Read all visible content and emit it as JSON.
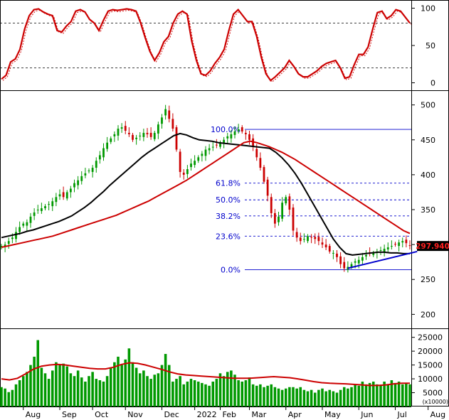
{
  "chart_data": [
    {
      "panel": "stochastic",
      "type": "line",
      "ylim": [
        -10,
        110
      ],
      "yticks": [
        0,
        50,
        100
      ],
      "reference_lines": [
        20,
        80
      ],
      "colors": {
        "k": "#cc0000",
        "d": "#cc0000",
        "ref": "#000000"
      },
      "series": [
        {
          "values": [
            5,
            10,
            28,
            32,
            45,
            72,
            90,
            98,
            99,
            95,
            92,
            90,
            70,
            68,
            76,
            82,
            96,
            98,
            95,
            85,
            80,
            70,
            84,
            96,
            98,
            97,
            98,
            99,
            98,
            96,
            80,
            60,
            42,
            30,
            40,
            55,
            62,
            80,
            92,
            96,
            92,
            56,
            30,
            12,
            10,
            16,
            26,
            34,
            45,
            70,
            92,
            98,
            90,
            82,
            82,
            62,
            34,
            12,
            3,
            8,
            14,
            20,
            30,
            22,
            12,
            8,
            8,
            12,
            16,
            22,
            26,
            28,
            30,
            20,
            6,
            8,
            24,
            38,
            38,
            48,
            72,
            94,
            96,
            86,
            90,
            98,
            96,
            88,
            80
          ]
        }
      ]
    },
    {
      "panel": "price",
      "type": "line",
      "ylim": [
        180,
        520
      ],
      "yticks": [
        200,
        250,
        300,
        350,
        400,
        450,
        500
      ],
      "last_price_label": "297.940",
      "colors": {
        "up": "#009900",
        "down": "#cc0000",
        "ma_short": "#000000",
        "ma_long": "#cc0000",
        "fib": "#0000cc",
        "trend": "#0000cc"
      },
      "x_labels": [
        "Aug",
        "Sep",
        "Oct",
        "Nov",
        "Dec",
        "2022",
        "Feb",
        "Mar",
        "Apr",
        "May",
        "Jun",
        "Jul",
        "Aug"
      ],
      "x_label_index": [
        6,
        16,
        25,
        34,
        44,
        53,
        60,
        68,
        78,
        88,
        98,
        108,
        117
      ],
      "close": [
        298,
        300,
        305,
        310,
        318,
        325,
        330,
        332,
        340,
        346,
        350,
        352,
        355,
        358,
        362,
        368,
        372,
        368,
        375,
        380,
        388,
        392,
        398,
        402,
        406,
        410,
        420,
        428,
        438,
        446,
        452,
        458,
        466,
        468,
        463,
        458,
        450,
        453,
        456,
        460,
        458,
        454,
        460,
        472,
        482,
        494,
        480,
        466,
        436,
        404,
        400,
        408,
        416,
        420,
        425,
        430,
        436,
        438,
        440,
        442,
        446,
        450,
        455,
        458,
        462,
        465,
        462,
        458,
        450,
        440,
        425,
        410,
        390,
        370,
        345,
        330,
        340,
        360,
        368,
        350,
        320,
        310,
        305,
        308,
        312,
        310,
        308,
        305,
        300,
        296,
        290,
        288,
        282,
        272,
        266,
        268,
        272,
        276,
        278,
        282,
        285,
        287,
        288,
        290,
        292,
        294,
        296,
        298,
        300,
        303,
        305,
        302,
        298
      ],
      "series": [
        {
          "name": "ma_short",
          "start_index": 0,
          "values": [
            310,
            312,
            314,
            316,
            319,
            321,
            324,
            327,
            330,
            333,
            337,
            341,
            347,
            353,
            360,
            368,
            376,
            385,
            393,
            401,
            409,
            417,
            425,
            432,
            438,
            444,
            450,
            456,
            459,
            457,
            453,
            450,
            449,
            448,
            446,
            445,
            444,
            443,
            442,
            441,
            440,
            439,
            438,
            432,
            424,
            414,
            402,
            388,
            372,
            356,
            340,
            324,
            308,
            296,
            287,
            285,
            286,
            287,
            288,
            289,
            289,
            288,
            288,
            287,
            287
          ]
        },
        {
          "name": "ma_long",
          "start_index": 0,
          "values": [
            296,
            298,
            300,
            302,
            304,
            306,
            308,
            310,
            312,
            315,
            318,
            321,
            324,
            327,
            330,
            333,
            336,
            339,
            342,
            346,
            350,
            354,
            358,
            362,
            367,
            372,
            377,
            382,
            387,
            392,
            398,
            404,
            410,
            416,
            422,
            428,
            434,
            440,
            446,
            448,
            446,
            443,
            440,
            436,
            432,
            427,
            422,
            416,
            410,
            404,
            398,
            392,
            386,
            380,
            374,
            368,
            362,
            356,
            350,
            344,
            338,
            332,
            326,
            320,
            316
          ]
        },
        {
          "name": "trend",
          "start_index": 0,
          "values": [
            266,
            290
          ]
        }
      ],
      "fib_levels": [
        {
          "label": "100.0%",
          "price": 465
        },
        {
          "label": "61.8%",
          "price": 388
        },
        {
          "label": "50.0%",
          "price": 364
        },
        {
          "label": "38.2%",
          "price": 341
        },
        {
          "label": "23.6%",
          "price": 312
        },
        {
          "label": "0.0%",
          "price": 264
        }
      ]
    },
    {
      "panel": "volume",
      "type": "bar",
      "ylim": [
        0,
        28000
      ],
      "yticks": [
        5000,
        10000,
        15000,
        20000,
        25000
      ],
      "unit_label": "(x10000)",
      "colors": {
        "bars": "#009900",
        "ma": "#cc0000"
      },
      "values": [
        7000,
        6500,
        5200,
        6000,
        8000,
        9500,
        11000,
        12500,
        15000,
        18000,
        24000,
        14000,
        12000,
        10000,
        13000,
        16000,
        15000,
        15500,
        14500,
        12000,
        11000,
        13000,
        10500,
        9000,
        11000,
        12500,
        10000,
        9500,
        9000,
        11000,
        14000,
        16000,
        18000,
        15000,
        17000,
        21000,
        16000,
        14000,
        12000,
        13000,
        11000,
        10000,
        11500,
        12000,
        15000,
        19000,
        15000,
        9000,
        10000,
        11000,
        8000,
        9000,
        10000,
        9500,
        9000,
        8500,
        8000,
        7500,
        9000,
        10000,
        12000,
        11000,
        12500,
        13000,
        11500,
        9500,
        9000,
        9500,
        10500,
        8000,
        7500,
        8000,
        7000,
        7500,
        8000,
        7000,
        6500,
        6000,
        6500,
        7000,
        7000,
        6500,
        7000,
        6000,
        5500,
        6000,
        5000,
        6000,
        6500,
        5500,
        6000,
        5500,
        5000,
        6000,
        7000,
        6500,
        7000,
        8000,
        7500,
        9000,
        8000,
        8500,
        9000,
        8000,
        7500,
        9000,
        8000,
        9500,
        8500,
        9000,
        8000,
        8500,
        8000
      ],
      "series": [
        {
          "name": "ma",
          "start_index": 0,
          "values": [
            10000,
            9600,
            10200,
            11800,
            13500,
            14600,
            15000,
            15200,
            15000,
            14600,
            14200,
            13800,
            13600,
            13600,
            14200,
            15200,
            15800,
            15600,
            15000,
            14200,
            13400,
            12500,
            11800,
            11400,
            11200,
            11000,
            10800,
            10600,
            10400,
            10200,
            10200,
            10200,
            10400,
            10600,
            10800,
            10600,
            10400,
            10000,
            9500,
            9000,
            8600,
            8400,
            8300,
            8200,
            8000,
            7800,
            7600,
            7600,
            7800,
            8200,
            8400,
            8400
          ]
        }
      ]
    }
  ]
}
